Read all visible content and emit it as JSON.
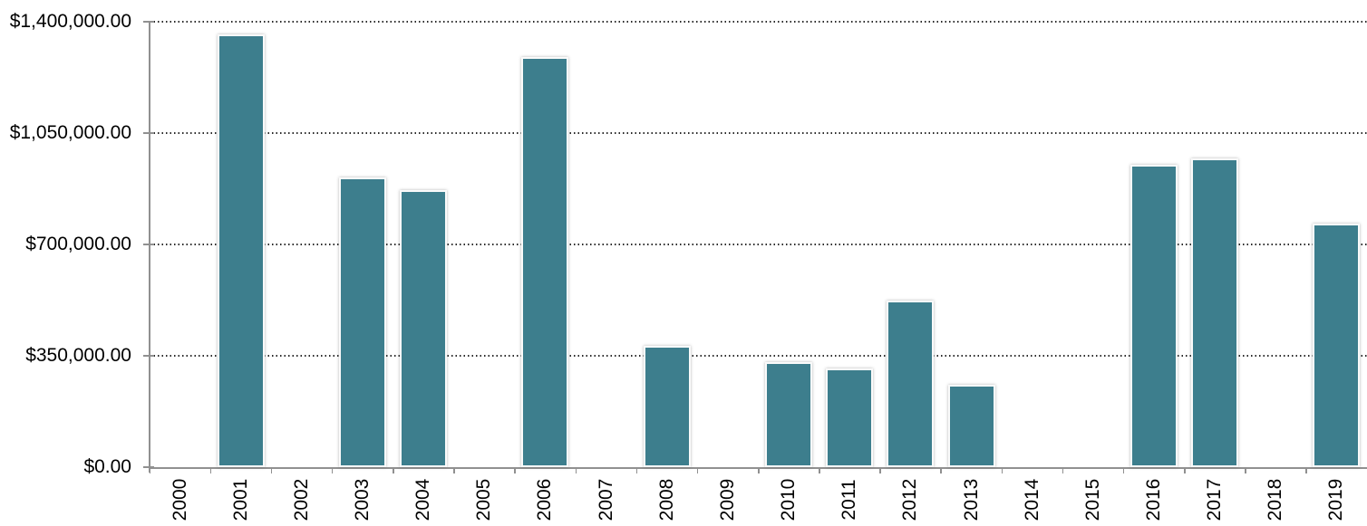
{
  "chart_data": {
    "type": "bar",
    "title": "",
    "xlabel": "",
    "ylabel": "",
    "categories": [
      "2000",
      "2001",
      "2002",
      "2003",
      "2004",
      "2005",
      "2006",
      "2007",
      "2008",
      "2009",
      "2010",
      "2011",
      "2012",
      "2013",
      "2014",
      "2015",
      "2016",
      "2017",
      "2018",
      "2019"
    ],
    "values": [
      0,
      1360000,
      0,
      910000,
      870000,
      0,
      1290000,
      0,
      380000,
      0,
      330000,
      310000,
      525000,
      260000,
      0,
      0,
      950000,
      970000,
      0,
      765000
    ],
    "ylim": [
      0,
      1400000
    ],
    "y_ticks": [
      {
        "value": 0,
        "label": "$0.00"
      },
      {
        "value": 350000,
        "label": "$350,000.00"
      },
      {
        "value": 700000,
        "label": "$700,000.00"
      },
      {
        "value": 1050000,
        "label": "$1,050,000.00"
      },
      {
        "value": 1400000,
        "label": "$1,400,000.00"
      }
    ],
    "x_tick_label_rotation": -90,
    "grid": "horizontal-dotted",
    "legend_position": "none",
    "colors": {
      "bar": "#3D7E8D",
      "bar_edge": "#FAFAFA",
      "axis": "#909090",
      "gridline": "#2A2A2A",
      "label": "#000000",
      "background": "#FFFFFF"
    }
  }
}
